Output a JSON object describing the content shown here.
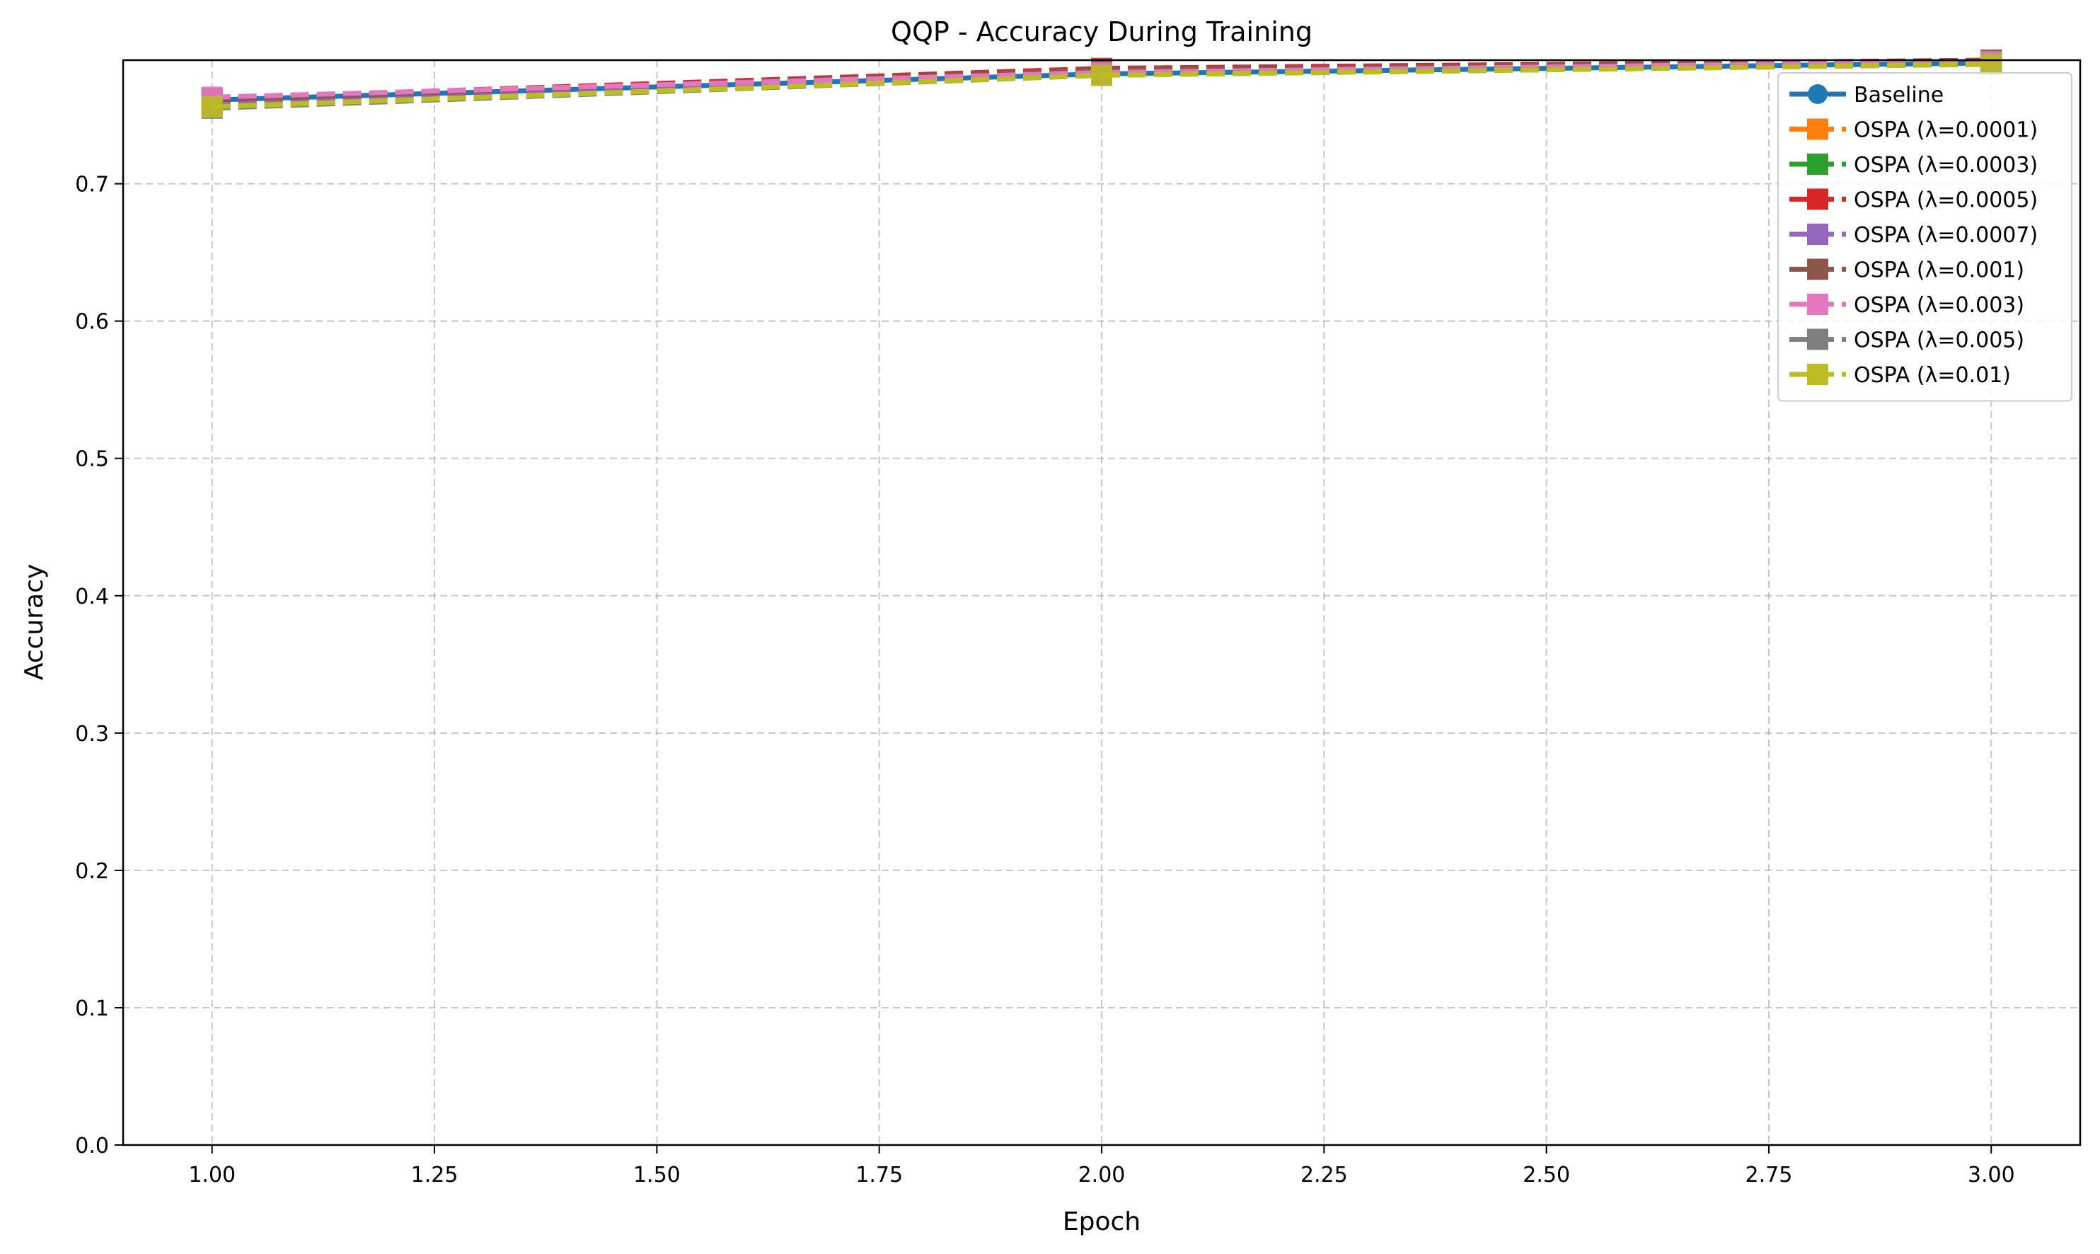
{
  "chart_data": {
    "type": "line",
    "title": "QQP - Accuracy During Training",
    "xlabel": "Epoch",
    "ylabel": "Accuracy",
    "xlim": [
      0.9,
      3.1
    ],
    "ylim": [
      0.0,
      0.79
    ],
    "xticks": [
      "1.00",
      "1.25",
      "1.50",
      "1.75",
      "2.00",
      "2.25",
      "2.50",
      "2.75",
      "3.00"
    ],
    "yticks": [
      "0.0",
      "0.1",
      "0.2",
      "0.3",
      "0.4",
      "0.5",
      "0.6",
      "0.7"
    ],
    "grid": true,
    "legend_position": "top-right",
    "x": [
      1,
      2,
      3
    ],
    "series": [
      {
        "name": "Baseline",
        "values": [
          0.761,
          0.78,
          0.788
        ],
        "color": "#1f77b4",
        "marker": "circle",
        "linestyle": "solid"
      },
      {
        "name": "OSPA (λ=0.0001)",
        "values": [
          0.76,
          0.782,
          0.789
        ],
        "color": "#ff7f0e",
        "marker": "square",
        "linestyle": "dashed"
      },
      {
        "name": "OSPA (λ=0.0003)",
        "values": [
          0.758,
          0.781,
          0.788
        ],
        "color": "#2ca02c",
        "marker": "square",
        "linestyle": "dashed"
      },
      {
        "name": "OSPA (λ=0.0005)",
        "values": [
          0.762,
          0.784,
          0.79
        ],
        "color": "#d62728",
        "marker": "square",
        "linestyle": "dashed"
      },
      {
        "name": "OSPA (λ=0.0007)",
        "values": [
          0.759,
          0.782,
          0.789
        ],
        "color": "#9467bd",
        "marker": "square",
        "linestyle": "dashed"
      },
      {
        "name": "OSPA (λ=0.001)",
        "values": [
          0.761,
          0.783,
          0.79
        ],
        "color": "#8c564b",
        "marker": "square",
        "linestyle": "dashed"
      },
      {
        "name": "OSPA (λ=0.003)",
        "values": [
          0.763,
          0.781,
          0.789
        ],
        "color": "#e377c2",
        "marker": "square",
        "linestyle": "dashed"
      },
      {
        "name": "OSPA (λ=0.005)",
        "values": [
          0.755,
          0.779,
          0.787
        ],
        "color": "#7f7f7f",
        "marker": "square",
        "linestyle": "dashed"
      },
      {
        "name": "OSPA (λ=0.01)",
        "values": [
          0.756,
          0.779,
          0.787
        ],
        "color": "#bcbd22",
        "marker": "square",
        "linestyle": "dashed"
      }
    ]
  }
}
